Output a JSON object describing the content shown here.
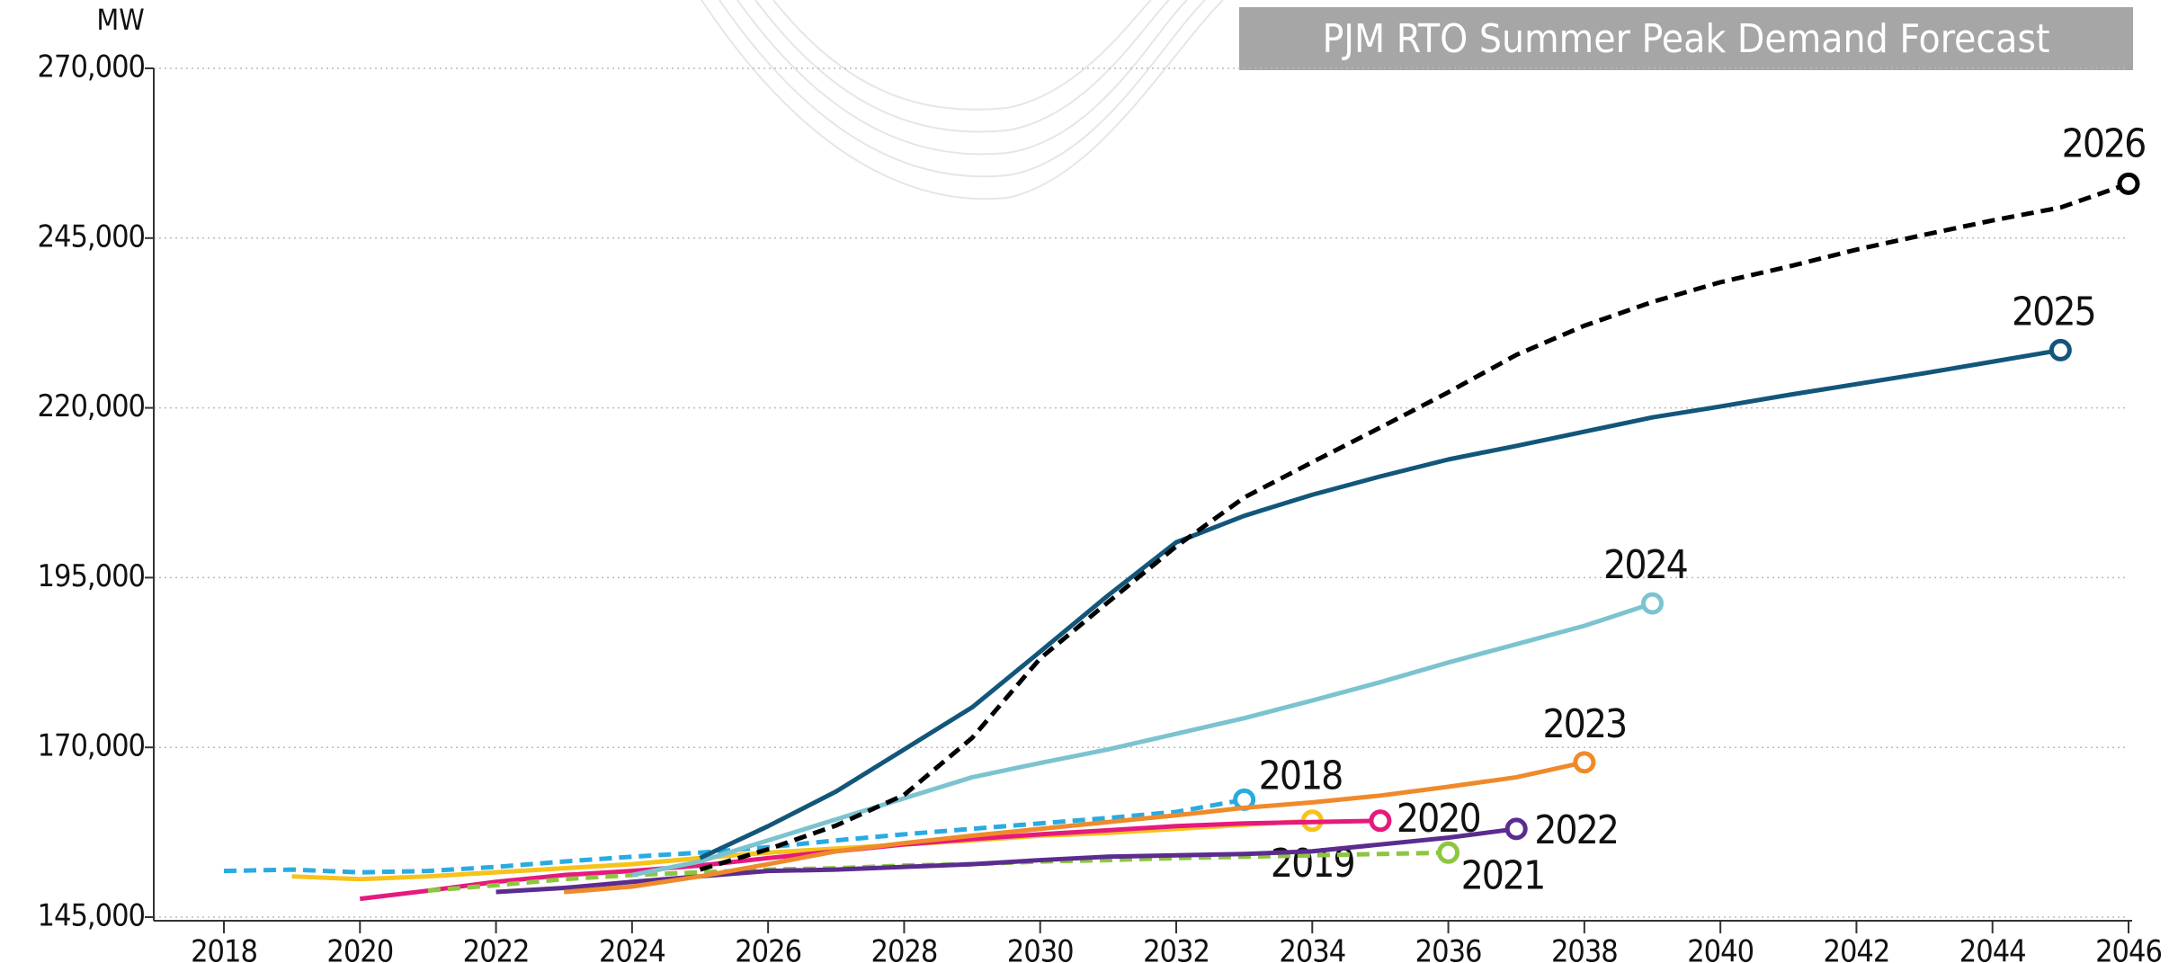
{
  "chart_data": {
    "type": "line",
    "title": "PJM RTO Summer Peak Demand Forecast",
    "y_label": "MW",
    "x": [
      2018,
      2019,
      2020,
      2021,
      2022,
      2023,
      2024,
      2025,
      2026,
      2027,
      2028,
      2029,
      2030,
      2031,
      2032,
      2033,
      2034,
      2035,
      2036,
      2037,
      2038,
      2039,
      2040,
      2041,
      2042,
      2043,
      2044,
      2045,
      2046
    ],
    "xlim": [
      2018,
      2046
    ],
    "xticks": [
      2018,
      2020,
      2022,
      2024,
      2026,
      2028,
      2030,
      2032,
      2034,
      2036,
      2038,
      2040,
      2042,
      2044,
      2046
    ],
    "ylim": [
      145000,
      270000
    ],
    "yticks": [
      {
        "value": 145000,
        "label": "145,000"
      },
      {
        "value": 170000,
        "label": "170,000"
      },
      {
        "value": 195000,
        "label": "195,000"
      },
      {
        "value": 220000,
        "label": "220,000"
      },
      {
        "value": 245000,
        "label": "245,000"
      },
      {
        "value": 270000,
        "label": "270,000"
      }
    ],
    "grid": true,
    "series": [
      {
        "name": "2018",
        "color": "#29abe2",
        "dashed": true,
        "values": [
          151800,
          152000,
          151600,
          151800,
          152400,
          153200,
          153900,
          154500,
          155300,
          156300,
          157200,
          158000,
          158800,
          159600,
          160500,
          162300,
          null,
          null,
          null,
          null,
          null,
          null,
          null,
          null,
          null,
          null,
          null,
          null,
          null
        ]
      },
      {
        "name": "2019",
        "color": "#f7c21b",
        "dashed": false,
        "values": [
          null,
          151000,
          150600,
          151000,
          151600,
          152200,
          152800,
          153700,
          154500,
          155100,
          155700,
          156300,
          157000,
          157400,
          158000,
          158600,
          159200,
          null,
          null,
          null,
          null,
          null,
          null,
          null,
          null,
          null,
          null,
          null,
          null
        ]
      },
      {
        "name": "2020",
        "color": "#e6197d",
        "dashed": false,
        "values": [
          null,
          null,
          147700,
          148900,
          150200,
          151200,
          151800,
          152600,
          153700,
          154700,
          155700,
          156500,
          157200,
          157800,
          158400,
          158800,
          159000,
          159200,
          null,
          null,
          null,
          null,
          null,
          null,
          null,
          null,
          null,
          null,
          null
        ]
      },
      {
        "name": "2021",
        "color": "#8dc63f",
        "dashed": true,
        "values": [
          null,
          null,
          null,
          148900,
          149700,
          150600,
          151200,
          151600,
          152000,
          152200,
          152600,
          152800,
          153200,
          153400,
          153700,
          153900,
          154100,
          154300,
          154500,
          null,
          null,
          null,
          null,
          null,
          null,
          null,
          null,
          null,
          null
        ]
      },
      {
        "name": "2022",
        "color": "#5b2c8f",
        "dashed": false,
        "values": [
          null,
          null,
          null,
          null,
          148700,
          149300,
          150200,
          151000,
          151800,
          152000,
          152400,
          152800,
          153400,
          153900,
          154100,
          154300,
          154700,
          155700,
          156700,
          158000,
          null,
          null,
          null,
          null,
          null,
          null,
          null,
          null,
          null
        ]
      },
      {
        "name": "2023",
        "color": "#ef8a2b",
        "dashed": false,
        "values": [
          null,
          null,
          null,
          null,
          null,
          148700,
          149500,
          151000,
          152800,
          154700,
          155900,
          157000,
          158000,
          159000,
          160000,
          161100,
          161900,
          162900,
          164200,
          165600,
          167800,
          null,
          null,
          null,
          null,
          null,
          null,
          null,
          null
        ]
      },
      {
        "name": "2024",
        "color": "#7cc3d0",
        "dashed": false,
        "values": [
          null,
          null,
          null,
          null,
          null,
          null,
          151200,
          153200,
          156300,
          159400,
          162500,
          165600,
          167700,
          169700,
          172000,
          174300,
          176900,
          179600,
          182500,
          185200,
          187900,
          191200,
          null,
          null,
          null,
          null,
          null,
          null,
          null
        ]
      },
      {
        "name": "2025",
        "color": "#12567a",
        "dashed": false,
        "values": [
          null,
          null,
          null,
          null,
          null,
          null,
          null,
          153700,
          158400,
          163500,
          169700,
          175900,
          184100,
          192400,
          200200,
          204100,
          207200,
          209900,
          212400,
          214400,
          216500,
          218600,
          220200,
          221900,
          223500,
          225100,
          226800,
          228500,
          null
        ]
      },
      {
        "name": "2026",
        "color": "#000000",
        "dashed": true,
        "values": [
          null,
          null,
          null,
          null,
          null,
          null,
          null,
          152000,
          155000,
          158500,
          163000,
          171400,
          183100,
          191400,
          199600,
          206800,
          212000,
          217100,
          222300,
          227800,
          232100,
          235600,
          238500,
          240800,
          243300,
          245500,
          247600,
          249500,
          253000
        ]
      }
    ]
  }
}
